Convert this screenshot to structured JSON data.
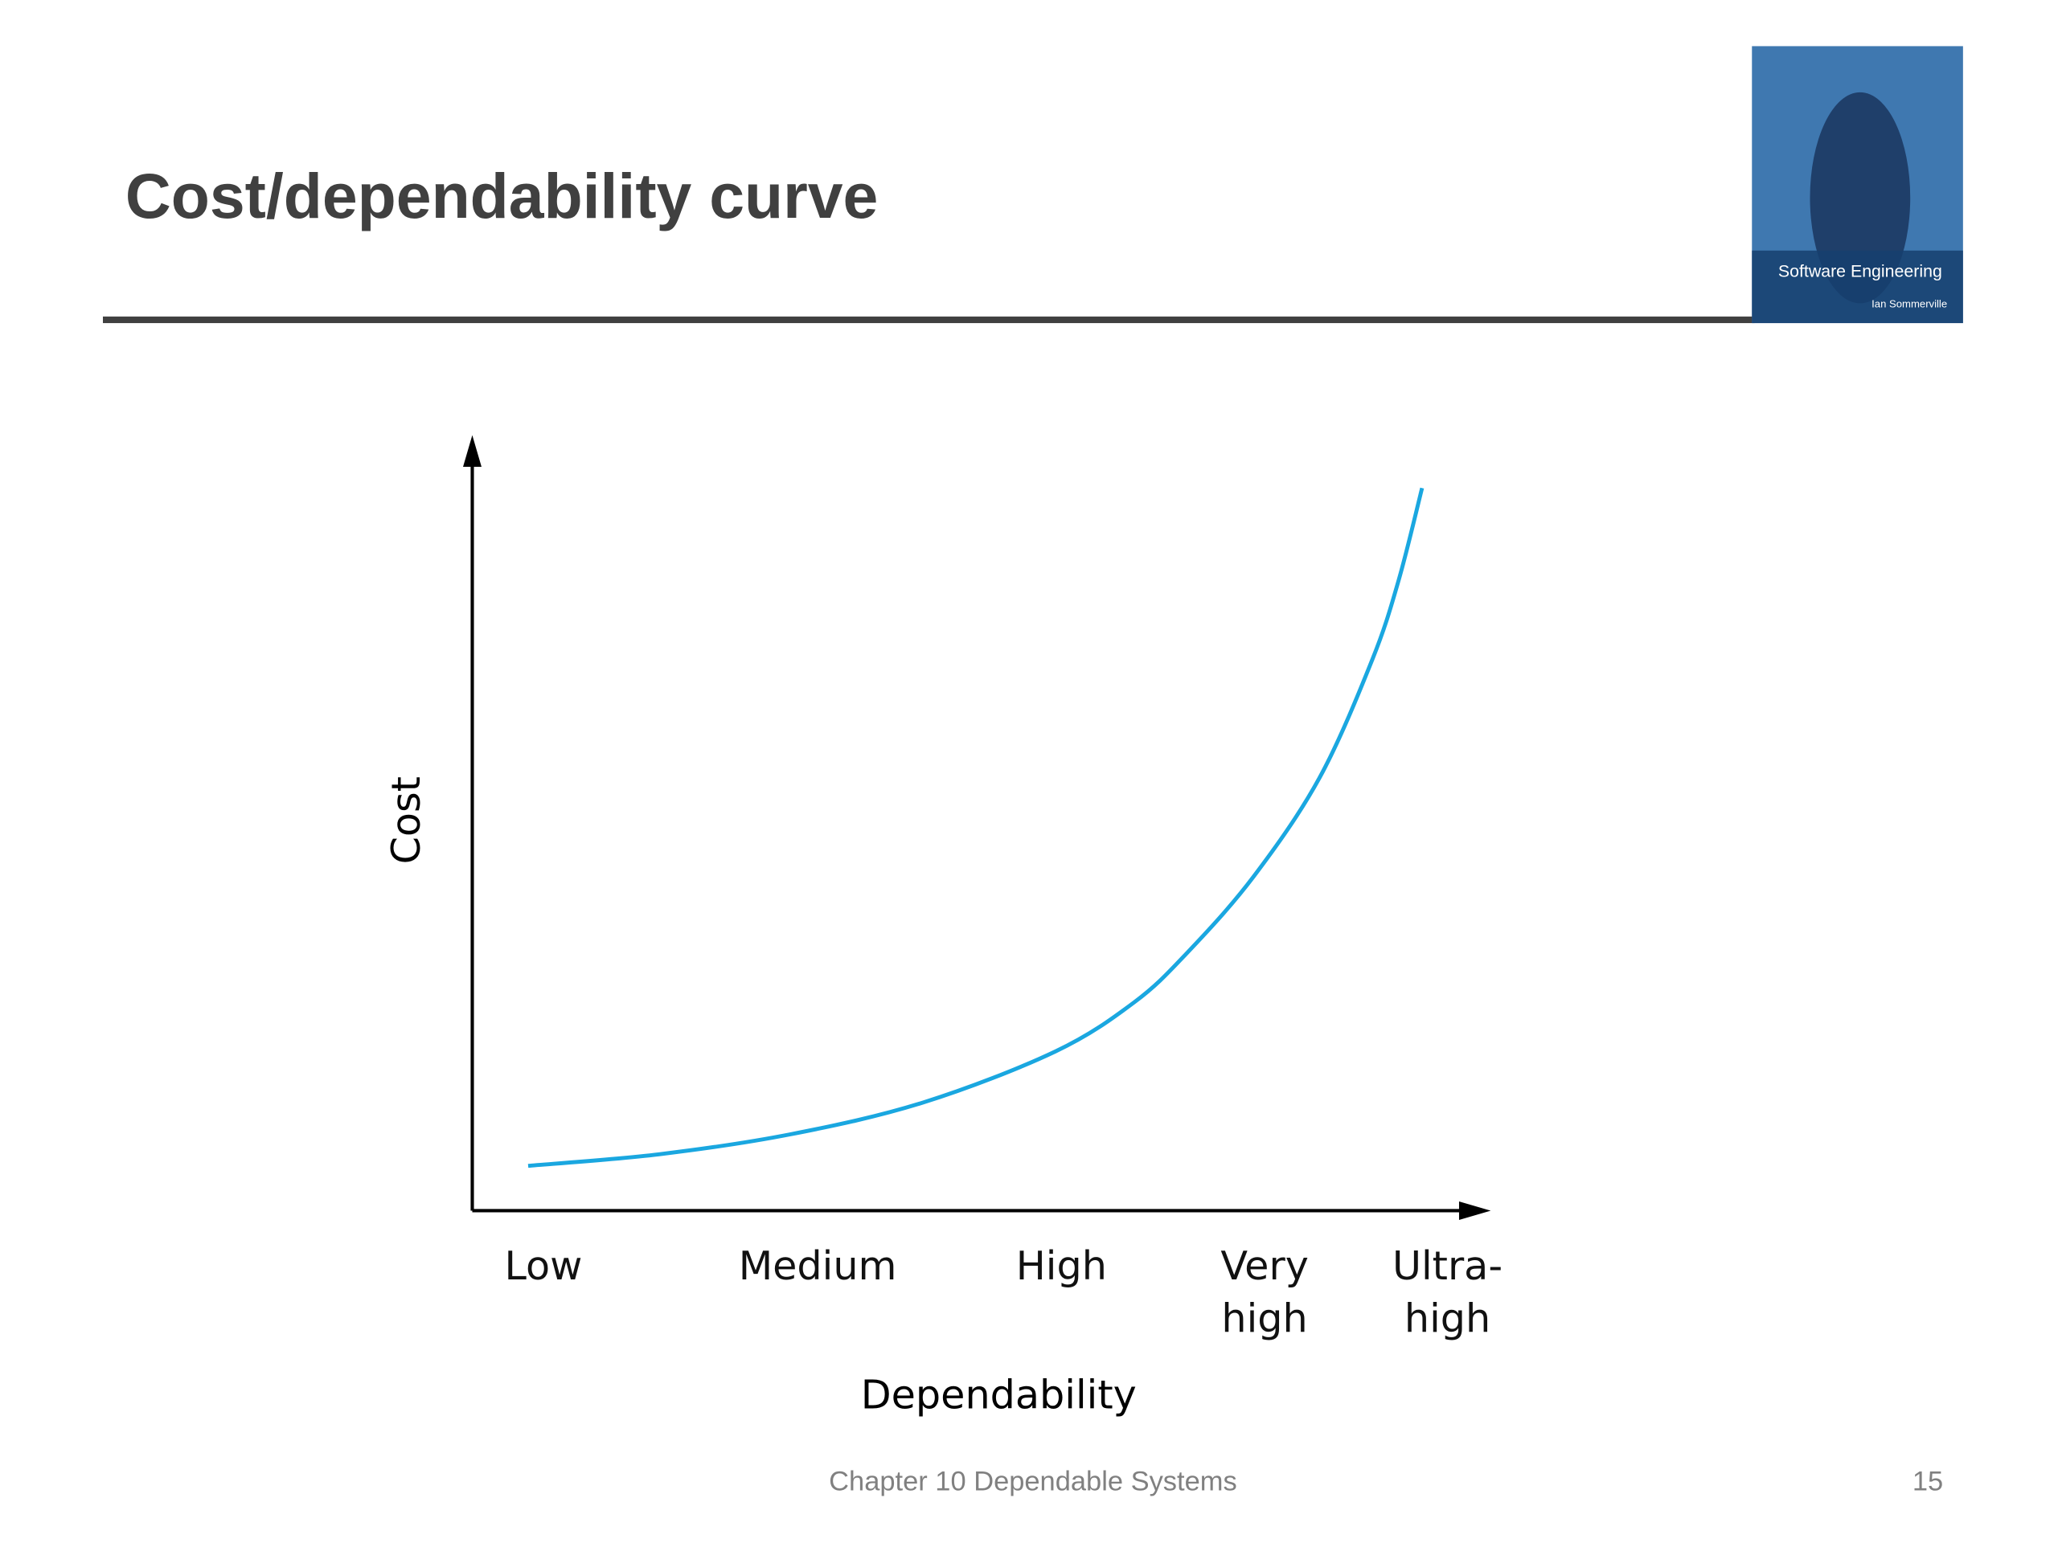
{
  "header": {
    "title": "Cost/dependability curve"
  },
  "cover": {
    "title": "Software Engineering",
    "author": "Ian Sommerville"
  },
  "chart_data": {
    "type": "line",
    "x_label": "Dependability",
    "y_label": "Cost",
    "xlim": [
      0,
      100
    ],
    "ylim": [
      0,
      100
    ],
    "xticks": [
      {
        "value": 7,
        "label": "Low"
      },
      {
        "value": 34,
        "label": "Medium"
      },
      {
        "value": 58,
        "label": "High"
      },
      {
        "value": 78,
        "label": "Very\nhigh"
      },
      {
        "value": 96,
        "label": "Ultra-\nhigh"
      }
    ],
    "series": [
      {
        "color": "#1aa7e0",
        "x": [
          5.5,
          18.4,
          31.4,
          44.4,
          57.4,
          65.2,
          70.4,
          76.9,
          83.4,
          88.6,
          91.2,
          93.5
        ],
        "values": [
          5.8,
          7.3,
          9.9,
          14.0,
          20.6,
          27.0,
          33.4,
          43.2,
          56.0,
          71.3,
          81.6,
          93.5
        ]
      }
    ]
  },
  "footer": {
    "text": "Chapter 10 Dependable Systems",
    "page": "15"
  }
}
